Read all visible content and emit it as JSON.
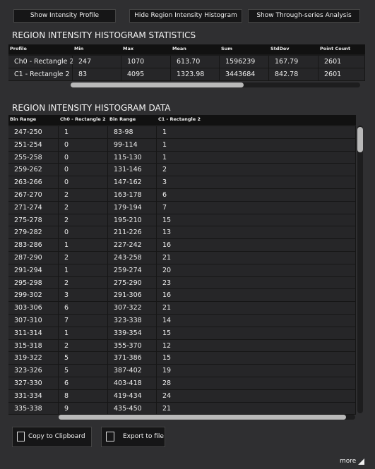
{
  "buttons": [
    "Show Intensity Profile",
    "Hide Region Intensity Histogram",
    "Show Through-series Analysis"
  ],
  "statistics": {
    "title": "REGION INTENSITY HISTOGRAM STATISTICS",
    "columns": [
      "Profile",
      "Min",
      "Max",
      "Mean",
      "Sum",
      "StdDev",
      "Point Count"
    ],
    "rows": [
      [
        "Ch0 - Rectangle 2",
        "247",
        "1070",
        "613.70",
        "1596239",
        "167.79",
        "2601"
      ],
      [
        "C1 - Rectangle 2",
        "83",
        "4095",
        "1323.98",
        "3443684",
        "842.78",
        "2601"
      ]
    ]
  },
  "histogram": {
    "title": "REGION INTENSITY HISTOGRAM DATA",
    "columns": [
      "Bin Range",
      "Ch0 - Rectangle 2",
      "Bin Range",
      "C1 - Rectangle 2"
    ],
    "rows": [
      [
        "247-250",
        "1",
        "83-98",
        "1"
      ],
      [
        "251-254",
        "0",
        "99-114",
        "1"
      ],
      [
        "255-258",
        "0",
        "115-130",
        "1"
      ],
      [
        "259-262",
        "0",
        "131-146",
        "2"
      ],
      [
        "263-266",
        "0",
        "147-162",
        "3"
      ],
      [
        "267-270",
        "2",
        "163-178",
        "6"
      ],
      [
        "271-274",
        "2",
        "179-194",
        "7"
      ],
      [
        "275-278",
        "2",
        "195-210",
        "15"
      ],
      [
        "279-282",
        "0",
        "211-226",
        "13"
      ],
      [
        "283-286",
        "1",
        "227-242",
        "16"
      ],
      [
        "287-290",
        "2",
        "243-258",
        "21"
      ],
      [
        "291-294",
        "1",
        "259-274",
        "20"
      ],
      [
        "295-298",
        "2",
        "275-290",
        "23"
      ],
      [
        "299-302",
        "3",
        "291-306",
        "16"
      ],
      [
        "303-306",
        "6",
        "307-322",
        "21"
      ],
      [
        "307-310",
        "7",
        "323-338",
        "14"
      ],
      [
        "311-314",
        "1",
        "339-354",
        "15"
      ],
      [
        "315-318",
        "2",
        "355-370",
        "12"
      ],
      [
        "319-322",
        "5",
        "371-386",
        "15"
      ],
      [
        "323-326",
        "5",
        "387-402",
        "19"
      ],
      [
        "327-330",
        "6",
        "403-418",
        "28"
      ],
      [
        "331-334",
        "8",
        "419-434",
        "24"
      ],
      [
        "335-338",
        "9",
        "435-450",
        "21"
      ]
    ]
  },
  "actions": [
    "Copy to Clipboard",
    "Export to file"
  ],
  "more": "more"
}
